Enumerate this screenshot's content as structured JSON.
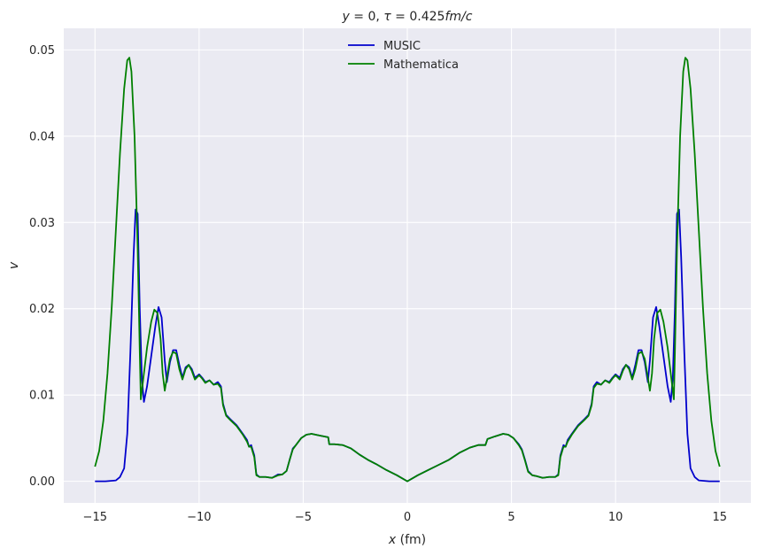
{
  "chart_data": {
    "type": "line",
    "title": "y = 0, τ = 0.425 fm/c",
    "title_parts": {
      "y": "y",
      "eq0": " = 0, ",
      "tau": "τ",
      "eq1": " = 0.425",
      "unit": "fm/c"
    },
    "xlabel_var": "x",
    "xlabel_unit": " (fm)",
    "ylabel": "v",
    "xlim": [
      -16.5,
      16.5
    ],
    "ylim": [
      -0.0025,
      0.0525
    ],
    "xticks": [
      -15,
      -10,
      -5,
      0,
      5,
      10,
      15
    ],
    "xtick_labels": [
      "−15",
      "−10",
      "−5",
      "0",
      "5",
      "10",
      "15"
    ],
    "yticks": [
      0.0,
      0.01,
      0.02,
      0.03,
      0.04,
      0.05
    ],
    "ytick_labels": [
      "0.00",
      "0.01",
      "0.02",
      "0.03",
      "0.04",
      "0.05"
    ],
    "grid": true,
    "legend_position": "upper-center",
    "background": "#eaeaf2",
    "grid_color": "#ffffff",
    "series": [
      {
        "name": "MUSIC",
        "color": "#0000cc",
        "points": [
          [
            -15.0,
            0.0
          ],
          [
            -14.5,
            0.0
          ],
          [
            -14.0,
            0.0001
          ],
          [
            -13.8,
            0.0005
          ],
          [
            -13.6,
            0.0015
          ],
          [
            -13.45,
            0.0055
          ],
          [
            -13.3,
            0.015
          ],
          [
            -13.15,
            0.026
          ],
          [
            -13.05,
            0.0315
          ],
          [
            -12.95,
            0.031
          ],
          [
            -12.85,
            0.02
          ],
          [
            -12.75,
            0.012
          ],
          [
            -12.65,
            0.0092
          ],
          [
            -12.5,
            0.011
          ],
          [
            -12.3,
            0.0145
          ],
          [
            -12.1,
            0.018
          ],
          [
            -11.95,
            0.0202
          ],
          [
            -11.8,
            0.019
          ],
          [
            -11.65,
            0.014
          ],
          [
            -11.55,
            0.0115
          ],
          [
            -11.4,
            0.0138
          ],
          [
            -11.25,
            0.0152
          ],
          [
            -11.1,
            0.0152
          ],
          [
            -10.95,
            0.0135
          ],
          [
            -10.8,
            0.012
          ],
          [
            -10.65,
            0.0132
          ],
          [
            -10.5,
            0.0135
          ],
          [
            -10.35,
            0.013
          ],
          [
            -10.2,
            0.012
          ],
          [
            -10.0,
            0.0124
          ],
          [
            -9.85,
            0.012
          ],
          [
            -9.7,
            0.0115
          ],
          [
            -9.5,
            0.0117
          ],
          [
            -9.3,
            0.0112
          ],
          [
            -9.1,
            0.0115
          ],
          [
            -8.95,
            0.011
          ],
          [
            -8.85,
            0.009
          ],
          [
            -8.7,
            0.0077
          ],
          [
            -8.5,
            0.0072
          ],
          [
            -8.2,
            0.0065
          ],
          [
            -7.9,
            0.0055
          ],
          [
            -7.7,
            0.0048
          ],
          [
            -7.6,
            0.004
          ],
          [
            -7.5,
            0.0042
          ],
          [
            -7.35,
            0.003
          ],
          [
            -7.25,
            0.0008
          ],
          [
            -7.1,
            0.0005
          ],
          [
            -6.8,
            0.0005
          ],
          [
            -6.5,
            0.0004
          ],
          [
            -6.2,
            0.0008
          ],
          [
            -6.0,
            0.0008
          ],
          [
            -5.8,
            0.0012
          ],
          [
            -5.65,
            0.0025
          ],
          [
            -5.5,
            0.0038
          ],
          [
            -5.35,
            0.0042
          ],
          [
            -5.1,
            0.005
          ],
          [
            -4.85,
            0.0054
          ],
          [
            -4.6,
            0.0055
          ],
          [
            -4.2,
            0.0053
          ],
          [
            -3.8,
            0.0051
          ],
          [
            -3.75,
            0.0043
          ],
          [
            -3.5,
            0.0043
          ],
          [
            -3.1,
            0.0042
          ],
          [
            -2.7,
            0.0038
          ],
          [
            -2.3,
            0.0031
          ],
          [
            -1.9,
            0.0025
          ],
          [
            -1.5,
            0.002
          ],
          [
            -1.0,
            0.0013
          ],
          [
            -0.5,
            0.0007
          ],
          [
            0.0,
            0.0
          ],
          [
            0.5,
            0.0007
          ],
          [
            1.0,
            0.0013
          ],
          [
            1.5,
            0.0019
          ],
          [
            2.0,
            0.0025
          ],
          [
            2.5,
            0.0033
          ],
          [
            3.0,
            0.0039
          ],
          [
            3.4,
            0.0042
          ],
          [
            3.75,
            0.0042
          ],
          [
            3.85,
            0.0049
          ],
          [
            4.2,
            0.0052
          ],
          [
            4.6,
            0.0055
          ],
          [
            4.85,
            0.0054
          ],
          [
            5.1,
            0.005
          ],
          [
            5.35,
            0.0043
          ],
          [
            5.5,
            0.0037
          ],
          [
            5.65,
            0.0025
          ],
          [
            5.8,
            0.0012
          ],
          [
            6.0,
            0.0007
          ],
          [
            6.2,
            0.0006
          ],
          [
            6.5,
            0.0004
          ],
          [
            6.8,
            0.0005
          ],
          [
            7.1,
            0.0005
          ],
          [
            7.25,
            0.0008
          ],
          [
            7.35,
            0.003
          ],
          [
            7.5,
            0.0042
          ],
          [
            7.6,
            0.004
          ],
          [
            7.7,
            0.0048
          ],
          [
            7.9,
            0.0055
          ],
          [
            8.2,
            0.0065
          ],
          [
            8.5,
            0.0072
          ],
          [
            8.7,
            0.0077
          ],
          [
            8.85,
            0.009
          ],
          [
            8.95,
            0.011
          ],
          [
            9.1,
            0.0115
          ],
          [
            9.3,
            0.0112
          ],
          [
            9.5,
            0.0117
          ],
          [
            9.7,
            0.0115
          ],
          [
            9.85,
            0.012
          ],
          [
            10.0,
            0.0124
          ],
          [
            10.2,
            0.012
          ],
          [
            10.35,
            0.013
          ],
          [
            10.5,
            0.0135
          ],
          [
            10.65,
            0.0132
          ],
          [
            10.8,
            0.012
          ],
          [
            10.95,
            0.0135
          ],
          [
            11.1,
            0.0152
          ],
          [
            11.25,
            0.0152
          ],
          [
            11.4,
            0.0138
          ],
          [
            11.55,
            0.0115
          ],
          [
            11.65,
            0.014
          ],
          [
            11.8,
            0.019
          ],
          [
            11.95,
            0.0202
          ],
          [
            12.1,
            0.018
          ],
          [
            12.3,
            0.0145
          ],
          [
            12.5,
            0.011
          ],
          [
            12.65,
            0.0092
          ],
          [
            12.75,
            0.012
          ],
          [
            12.85,
            0.02
          ],
          [
            12.95,
            0.031
          ],
          [
            13.05,
            0.0315
          ],
          [
            13.15,
            0.026
          ],
          [
            13.3,
            0.015
          ],
          [
            13.45,
            0.0055
          ],
          [
            13.6,
            0.0015
          ],
          [
            13.8,
            0.0005
          ],
          [
            14.0,
            0.0001
          ],
          [
            14.5,
            0.0
          ],
          [
            15.0,
            0.0
          ]
        ]
      },
      {
        "name": "Mathematica",
        "color": "#008000",
        "points": [
          [
            -15.0,
            0.0017
          ],
          [
            -14.8,
            0.0035
          ],
          [
            -14.6,
            0.007
          ],
          [
            -14.4,
            0.0125
          ],
          [
            -14.2,
            0.02
          ],
          [
            -14.0,
            0.029
          ],
          [
            -13.8,
            0.038
          ],
          [
            -13.6,
            0.0455
          ],
          [
            -13.45,
            0.0488
          ],
          [
            -13.35,
            0.0491
          ],
          [
            -13.25,
            0.0475
          ],
          [
            -13.1,
            0.04
          ],
          [
            -12.95,
            0.027
          ],
          [
            -12.85,
            0.015
          ],
          [
            -12.8,
            0.0095
          ],
          [
            -12.7,
            0.0115
          ],
          [
            -12.5,
            0.0155
          ],
          [
            -12.3,
            0.0185
          ],
          [
            -12.15,
            0.0199
          ],
          [
            -12.0,
            0.0195
          ],
          [
            -11.85,
            0.0165
          ],
          [
            -11.75,
            0.0125
          ],
          [
            -11.65,
            0.0105
          ],
          [
            -11.55,
            0.012
          ],
          [
            -11.4,
            0.0142
          ],
          [
            -11.25,
            0.015
          ],
          [
            -11.1,
            0.0148
          ],
          [
            -10.95,
            0.013
          ],
          [
            -10.8,
            0.0118
          ],
          [
            -10.65,
            0.013
          ],
          [
            -10.5,
            0.0135
          ],
          [
            -10.35,
            0.0128
          ],
          [
            -10.2,
            0.0118
          ],
          [
            -10.0,
            0.0123
          ],
          [
            -9.85,
            0.0119
          ],
          [
            -9.7,
            0.0114
          ],
          [
            -9.5,
            0.0117
          ],
          [
            -9.3,
            0.0112
          ],
          [
            -9.1,
            0.0113
          ],
          [
            -8.95,
            0.0108
          ],
          [
            -8.85,
            0.0088
          ],
          [
            -8.7,
            0.0076
          ],
          [
            -8.5,
            0.0071
          ],
          [
            -8.2,
            0.0064
          ],
          [
            -7.9,
            0.0054
          ],
          [
            -7.7,
            0.0046
          ],
          [
            -7.6,
            0.004
          ],
          [
            -7.5,
            0.004
          ],
          [
            -7.35,
            0.0028
          ],
          [
            -7.25,
            0.0007
          ],
          [
            -7.1,
            0.0005
          ],
          [
            -6.8,
            0.0005
          ],
          [
            -6.5,
            0.0004
          ],
          [
            -6.2,
            0.0007
          ],
          [
            -6.0,
            0.0008
          ],
          [
            -5.8,
            0.0012
          ],
          [
            -5.65,
            0.0025
          ],
          [
            -5.5,
            0.0037
          ],
          [
            -5.35,
            0.0042
          ],
          [
            -5.1,
            0.005
          ],
          [
            -4.85,
            0.0054
          ],
          [
            -4.6,
            0.0055
          ],
          [
            -4.2,
            0.0053
          ],
          [
            -3.8,
            0.0051
          ],
          [
            -3.75,
            0.0043
          ],
          [
            -3.5,
            0.0043
          ],
          [
            -3.1,
            0.0042
          ],
          [
            -2.7,
            0.0038
          ],
          [
            -2.3,
            0.0031
          ],
          [
            -1.9,
            0.0025
          ],
          [
            -1.5,
            0.002
          ],
          [
            -1.0,
            0.0013
          ],
          [
            -0.5,
            0.0007
          ],
          [
            0.0,
            0.0
          ],
          [
            0.5,
            0.0007
          ],
          [
            1.0,
            0.0013
          ],
          [
            1.5,
            0.0019
          ],
          [
            2.0,
            0.0025
          ],
          [
            2.5,
            0.0033
          ],
          [
            3.0,
            0.0039
          ],
          [
            3.4,
            0.0042
          ],
          [
            3.75,
            0.0042
          ],
          [
            3.85,
            0.0049
          ],
          [
            4.2,
            0.0052
          ],
          [
            4.6,
            0.0055
          ],
          [
            4.85,
            0.0054
          ],
          [
            5.1,
            0.005
          ],
          [
            5.35,
            0.0042
          ],
          [
            5.5,
            0.0036
          ],
          [
            5.65,
            0.0024
          ],
          [
            5.8,
            0.0011
          ],
          [
            6.0,
            0.0007
          ],
          [
            6.2,
            0.0006
          ],
          [
            6.5,
            0.0004
          ],
          [
            6.8,
            0.0005
          ],
          [
            7.1,
            0.0005
          ],
          [
            7.25,
            0.0007
          ],
          [
            7.35,
            0.0028
          ],
          [
            7.5,
            0.004
          ],
          [
            7.6,
            0.004
          ],
          [
            7.7,
            0.0046
          ],
          [
            7.9,
            0.0054
          ],
          [
            8.2,
            0.0064
          ],
          [
            8.5,
            0.0071
          ],
          [
            8.7,
            0.0076
          ],
          [
            8.85,
            0.0088
          ],
          [
            8.95,
            0.0108
          ],
          [
            9.1,
            0.0113
          ],
          [
            9.3,
            0.0112
          ],
          [
            9.5,
            0.0117
          ],
          [
            9.7,
            0.0114
          ],
          [
            9.85,
            0.0119
          ],
          [
            10.0,
            0.0123
          ],
          [
            10.2,
            0.0118
          ],
          [
            10.35,
            0.0128
          ],
          [
            10.5,
            0.0135
          ],
          [
            10.65,
            0.013
          ],
          [
            10.8,
            0.0118
          ],
          [
            10.95,
            0.013
          ],
          [
            11.1,
            0.0148
          ],
          [
            11.25,
            0.015
          ],
          [
            11.4,
            0.0142
          ],
          [
            11.55,
            0.012
          ],
          [
            11.65,
            0.0105
          ],
          [
            11.75,
            0.0125
          ],
          [
            11.85,
            0.0165
          ],
          [
            12.0,
            0.0195
          ],
          [
            12.15,
            0.0199
          ],
          [
            12.3,
            0.0185
          ],
          [
            12.5,
            0.0155
          ],
          [
            12.7,
            0.0115
          ],
          [
            12.8,
            0.0095
          ],
          [
            12.85,
            0.015
          ],
          [
            12.95,
            0.027
          ],
          [
            13.1,
            0.04
          ],
          [
            13.25,
            0.0475
          ],
          [
            13.35,
            0.0491
          ],
          [
            13.45,
            0.0488
          ],
          [
            13.6,
            0.0455
          ],
          [
            13.8,
            0.038
          ],
          [
            14.0,
            0.029
          ],
          [
            14.2,
            0.02
          ],
          [
            14.4,
            0.0125
          ],
          [
            14.6,
            0.007
          ],
          [
            14.8,
            0.0035
          ],
          [
            15.0,
            0.0017
          ]
        ]
      }
    ]
  }
}
